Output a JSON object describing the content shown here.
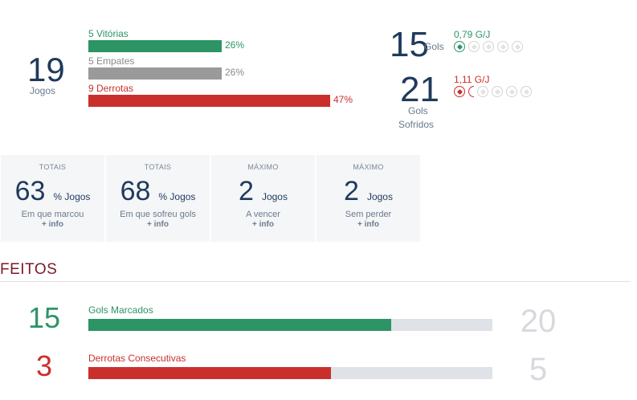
{
  "summary": {
    "games_count": "19",
    "games_label": "Jogos",
    "results": [
      {
        "label": "5 Vitórias",
        "pct": "26%",
        "fraction": 0.26,
        "color": "#2d9465"
      },
      {
        "label": "5 Empates",
        "pct": "26%",
        "fraction": 0.26,
        "color": "#9a9a9a"
      },
      {
        "label": "9 Derrotas",
        "pct": "47%",
        "fraction": 0.47,
        "color": "#c9302c"
      }
    ],
    "goals_scored": {
      "value": "15",
      "label": "Gols",
      "rate": "0,79 G/J",
      "rate_color": "#2d9465",
      "balls_filled": 1,
      "balls_total": 5
    },
    "goals_conceded": {
      "value": "21",
      "label_line1": "Gols",
      "label_line2": "Sofridos",
      "rate": "1,11 G/J",
      "rate_color": "#c9302c",
      "balls_filled": 1,
      "balls_partial": 0.11,
      "balls_total": 5
    }
  },
  "cards": [
    {
      "title": "TOTAIS",
      "value": "63",
      "unit": "% Jogos",
      "desc": "Em que marcou",
      "info": "+ info"
    },
    {
      "title": "TOTAIS",
      "value": "68",
      "unit": "% Jogos",
      "desc": "Em que sofreu gols",
      "info": "+ info"
    },
    {
      "title": "MÁXIMO",
      "value": "2",
      "unit": "Jogos",
      "desc": "A vencer",
      "info": "+ info"
    },
    {
      "title": "MÁXIMO",
      "value": "2",
      "unit": "Jogos",
      "desc": "Sem perder",
      "info": "+ info"
    }
  ],
  "feitos": {
    "title": "FEITOS",
    "items": [
      {
        "value": "15",
        "label": "Gols Marcados",
        "max": "20",
        "fraction": 0.75,
        "color": "#2d9465"
      },
      {
        "value": "3",
        "label": "Derrotas Consecutivas",
        "max": "5",
        "fraction": 0.6,
        "color": "#c9302c"
      }
    ]
  }
}
